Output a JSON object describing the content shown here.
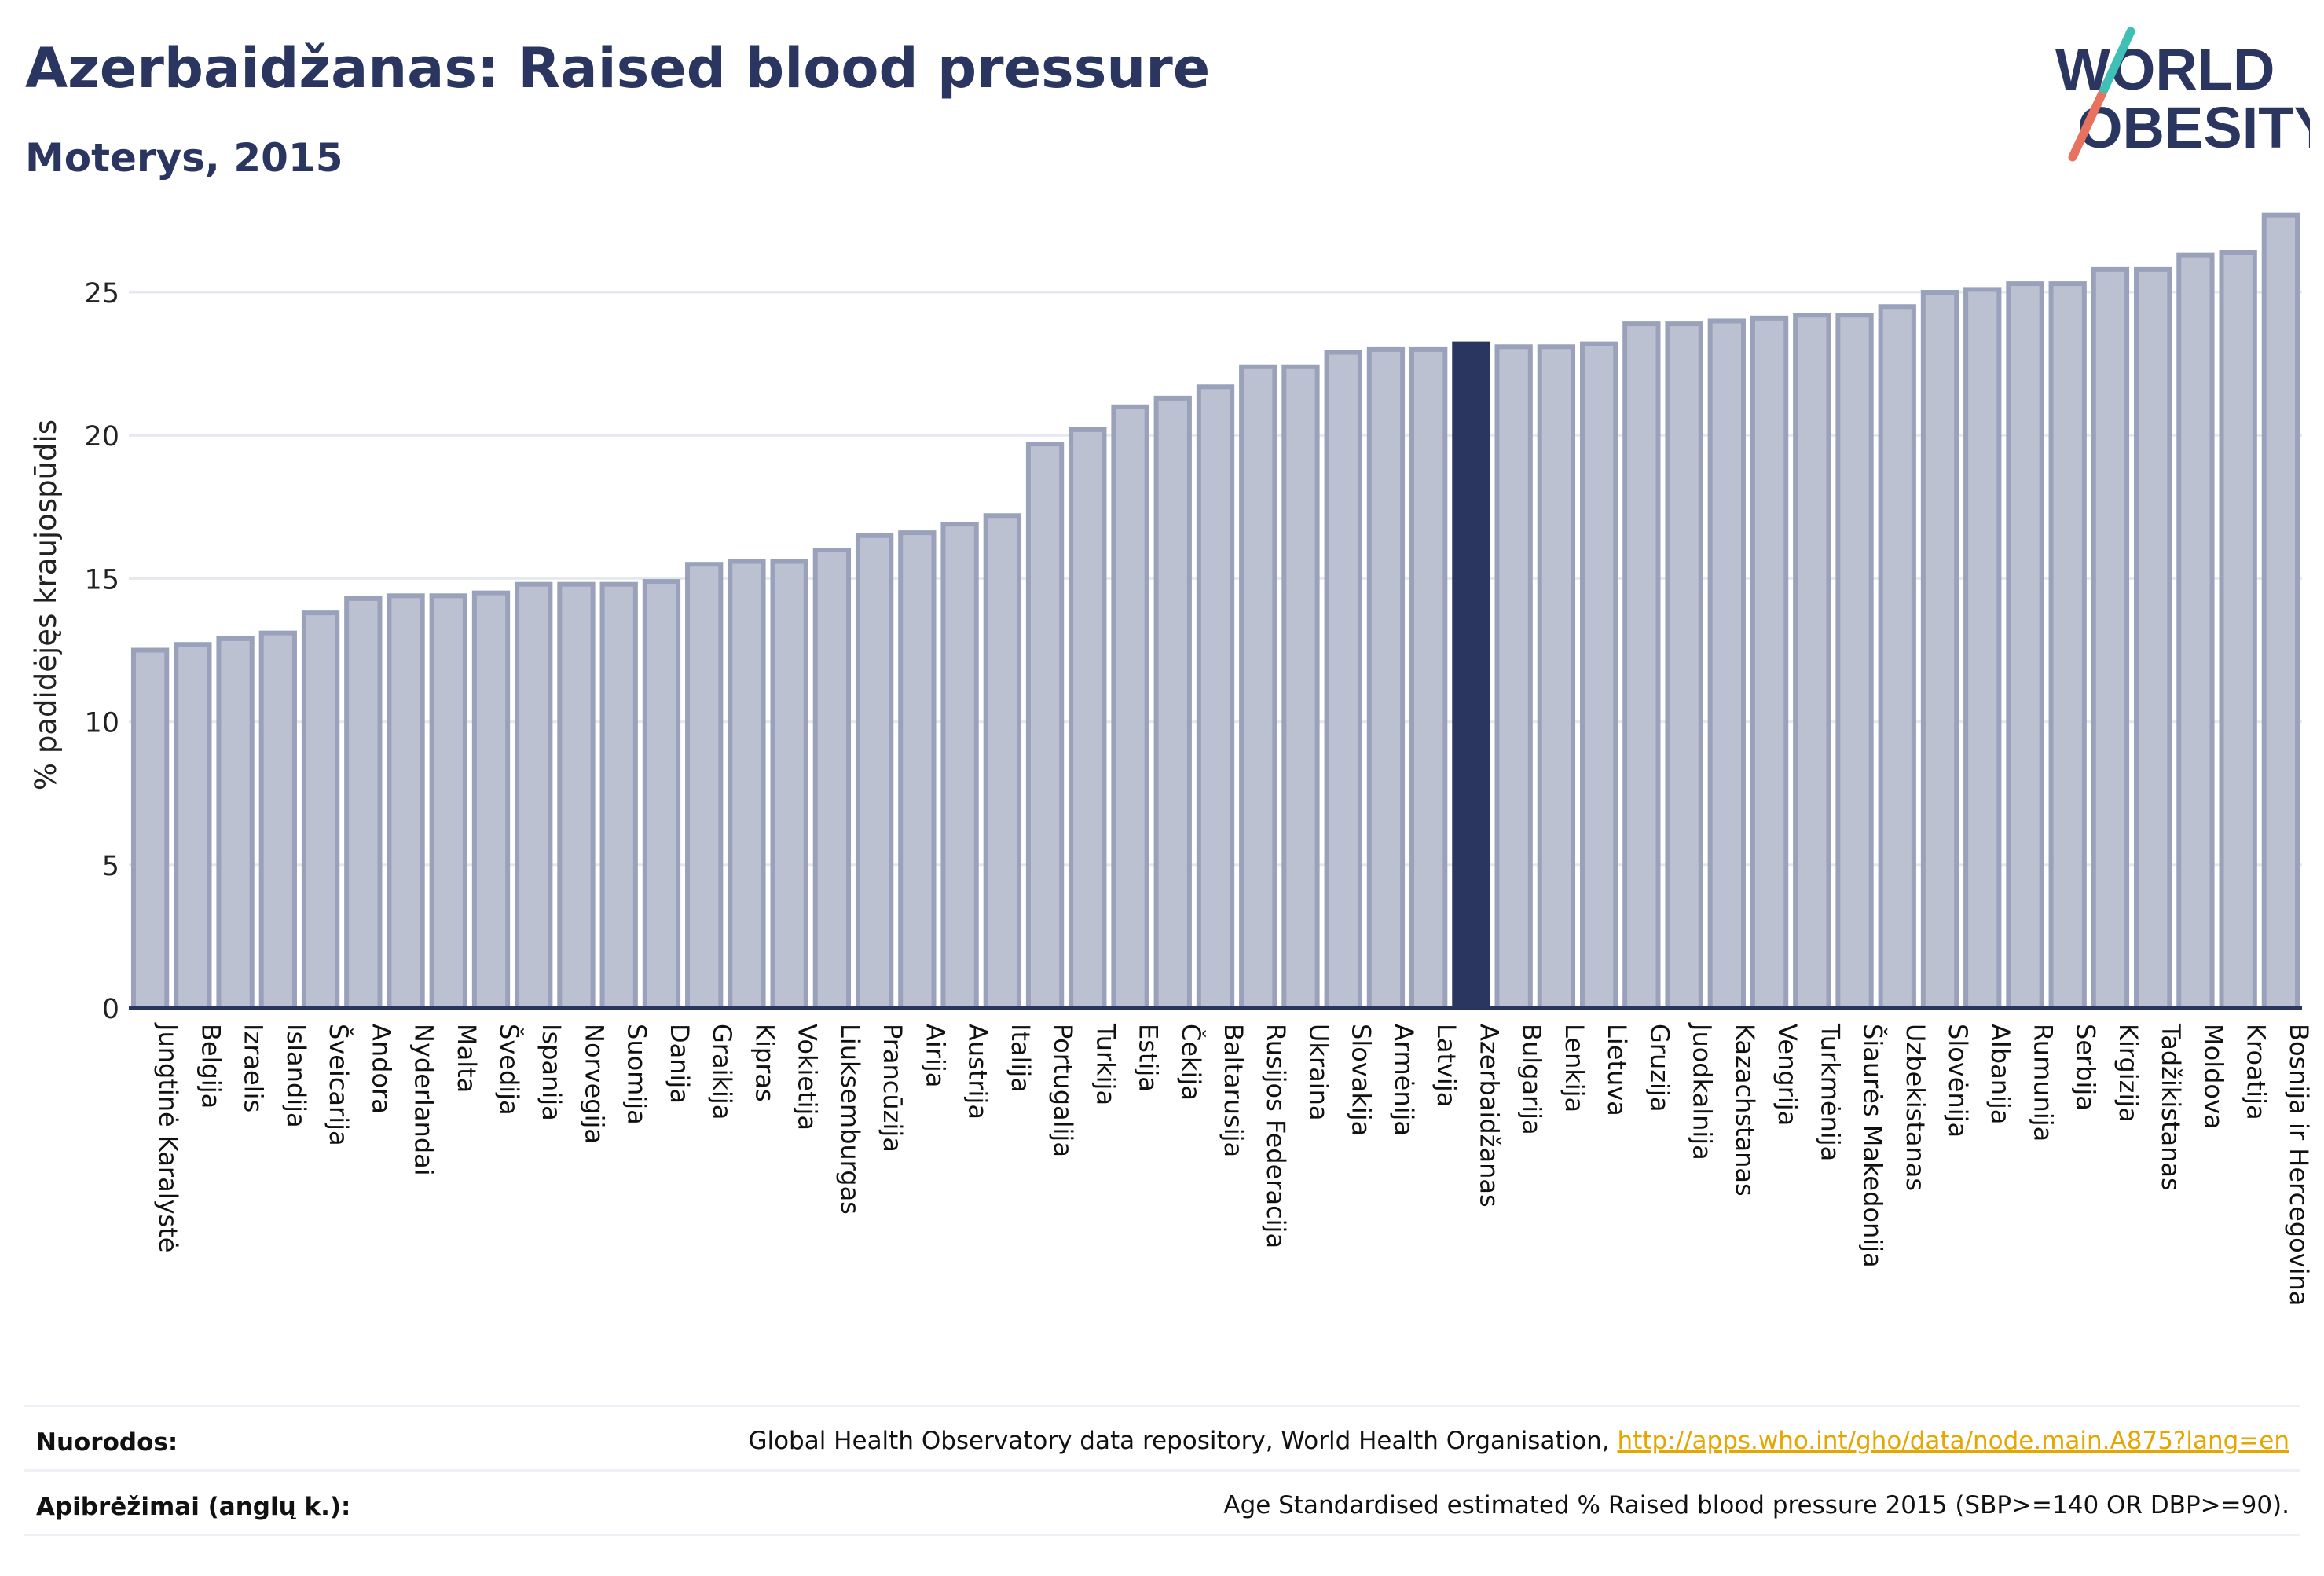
{
  "header": {
    "title": "Azerbaidžanas: Raised blood pressure",
    "subtitle": "Moterys, 2015"
  },
  "logo": {
    "line1": "WORLD",
    "line2": "OBESITY",
    "slash_colors": [
      "#e8725f",
      "#3fbfb5"
    ]
  },
  "colors": {
    "bar": "#bcc1d1",
    "bar_stroke": "#9aa1ba",
    "highlight": "#2a3560",
    "text": "#2a3560"
  },
  "chart_data": {
    "type": "bar",
    "ylabel": "% padidėjęs kraujospūdis",
    "ylim": [
      0,
      27.8
    ],
    "yticks": [
      0,
      5,
      10,
      15,
      20,
      25
    ],
    "grid": true,
    "highlight": "Azerbaidžanas",
    "categories": [
      "Jungtinė Karalystė",
      "Belgija",
      "Izraelis",
      "Islandija",
      "Šveicarija",
      "Andora",
      "Nyderlandai",
      "Malta",
      "Švedija",
      "Ispanija",
      "Norvegija",
      "Suomija",
      "Danija",
      "Graikija",
      "Kipras",
      "Vokietija",
      "Liuksemburgas",
      "Prancūzija",
      "Airija",
      "Austrija",
      "Italija",
      "Portugalija",
      "Turkija",
      "Estija",
      "Čekija",
      "Baltarusija",
      "Rusijos Federacija",
      "Ukraina",
      "Slovakija",
      "Armėnija",
      "Latvija",
      "Azerbaidžanas",
      "Bulgarija",
      "Lenkija",
      "Lietuva",
      "Gruzija",
      "Juodkalnija",
      "Kazachstanas",
      "Vengrija",
      "Turkmėnija",
      "Šiaurės Makedonija",
      "Uzbekistanas",
      "Slovėnija",
      "Albanija",
      "Rumunija",
      "Serbija",
      "Kirgizija",
      "Tadžikistanas",
      "Moldova",
      "Kroatija",
      "Bosnija ir Hercegovina"
    ],
    "values": [
      12.5,
      12.7,
      12.9,
      13.1,
      13.8,
      14.3,
      14.4,
      14.4,
      14.5,
      14.8,
      14.8,
      14.8,
      14.9,
      15.5,
      15.6,
      15.6,
      16.0,
      16.5,
      16.6,
      16.9,
      17.2,
      19.7,
      20.2,
      21.0,
      21.3,
      21.7,
      22.4,
      22.4,
      22.9,
      23.0,
      23.0,
      23.2,
      23.1,
      23.1,
      23.2,
      23.9,
      23.9,
      24.0,
      24.1,
      24.2,
      24.2,
      24.5,
      25.0,
      25.1,
      25.3,
      25.3,
      25.8,
      25.8,
      26.3,
      26.4,
      27.7
    ]
  },
  "footer": {
    "sources_label": "Nuorodos:",
    "sources_text": "Global Health Observatory data repository, World Health Organisation, ",
    "sources_link": "http://apps.who.int/gho/data/node.main.A875?lang=en",
    "definitions_label": "Apibrėžimai (anglų k.):",
    "definitions_text": "Age Standardised estimated % Raised blood pressure 2015 (SBP>=140 OR DBP>=90)."
  }
}
